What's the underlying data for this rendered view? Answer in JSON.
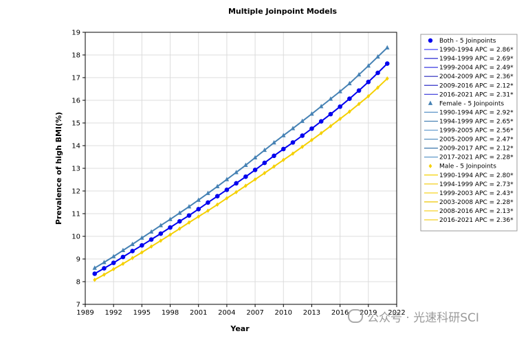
{
  "chart_data": {
    "type": "line",
    "title": "Multiple Joinpoint Models",
    "xlabel": "Year",
    "ylabel": "Prevalence of high BMI(%)",
    "xlim": [
      1989,
      2022
    ],
    "ylim": [
      7,
      19
    ],
    "xticks": [
      1989,
      1992,
      1995,
      1998,
      2001,
      2004,
      2007,
      2010,
      2013,
      2016,
      2019,
      2022
    ],
    "yticks": [
      7,
      8,
      9,
      10,
      11,
      12,
      13,
      14,
      15,
      16,
      17,
      18,
      19
    ],
    "grid": true,
    "legend_position": "right",
    "series": [
      {
        "name": "Both - 5 Joinpoints",
        "color": "#0000ee",
        "marker": "circle",
        "x": [
          1990,
          1991,
          1992,
          1993,
          1994,
          1995,
          1996,
          1997,
          1998,
          1999,
          2000,
          2001,
          2002,
          2003,
          2004,
          2005,
          2006,
          2007,
          2008,
          2009,
          2010,
          2011,
          2012,
          2013,
          2014,
          2015,
          2016,
          2017,
          2018,
          2019,
          2020,
          2021
        ],
        "values": [
          8.35,
          8.59,
          8.83,
          9.09,
          9.35,
          9.6,
          9.86,
          10.12,
          10.39,
          10.66,
          10.92,
          11.2,
          11.49,
          11.77,
          12.05,
          12.34,
          12.63,
          12.93,
          13.24,
          13.55,
          13.85,
          14.14,
          14.44,
          14.75,
          15.07,
          15.39,
          15.72,
          16.07,
          16.43,
          16.81,
          17.21,
          17.62
        ],
        "segments": [
          "1990-1994 APC  = 2.86*",
          "1994-1999 APC  = 2.69*",
          "1999-2004 APC  = 2.49*",
          "2004-2009 APC  = 2.36*",
          "2009-2016 APC  = 2.12*",
          "2016-2021 APC  = 2.31*"
        ]
      },
      {
        "name": "Female - 5 Joinpoints",
        "color": "#4682b4",
        "marker": "triangle",
        "x": [
          1990,
          1991,
          1992,
          1993,
          1994,
          1995,
          1996,
          1997,
          1998,
          1999,
          2000,
          2001,
          2002,
          2003,
          2004,
          2005,
          2006,
          2007,
          2008,
          2009,
          2010,
          2011,
          2012,
          2013,
          2014,
          2015,
          2016,
          2017,
          2018,
          2019,
          2020,
          2021
        ],
        "values": [
          8.6,
          8.85,
          9.11,
          9.38,
          9.65,
          9.93,
          10.2,
          10.48,
          10.75,
          11.03,
          11.31,
          11.6,
          11.9,
          12.2,
          12.51,
          12.82,
          13.14,
          13.47,
          13.8,
          14.13,
          14.45,
          14.76,
          15.08,
          15.4,
          15.73,
          16.06,
          16.39,
          16.74,
          17.13,
          17.52,
          17.92,
          18.32
        ],
        "segments": [
          "1990-1994 APC  = 2.92*",
          "1994-1999 APC  = 2.65*",
          "1999-2005 APC  = 2.56*",
          "2005-2009 APC  = 2.47*",
          "2009-2017 APC  = 2.12*",
          "2017-2021 APC  = 2.28*"
        ]
      },
      {
        "name": "Male - 5 Joinpoints",
        "color": "#f5d000",
        "marker": "diamond",
        "x": [
          1990,
          1991,
          1992,
          1993,
          1994,
          1995,
          1996,
          1997,
          1998,
          1999,
          2000,
          2001,
          2002,
          2003,
          2004,
          2005,
          2006,
          2007,
          2008,
          2009,
          2010,
          2011,
          2012,
          2013,
          2014,
          2015,
          2016,
          2017,
          2018,
          2019,
          2020,
          2021
        ],
        "values": [
          8.08,
          8.31,
          8.55,
          8.79,
          9.04,
          9.29,
          9.55,
          9.81,
          10.07,
          10.34,
          10.61,
          10.87,
          11.13,
          11.4,
          11.68,
          11.95,
          12.23,
          12.51,
          12.79,
          13.08,
          13.37,
          13.65,
          13.95,
          14.25,
          14.55,
          14.86,
          15.18,
          15.5,
          15.84,
          16.18,
          16.56,
          16.96
        ],
        "segments": [
          "1990-1994 APC  = 2.80*",
          "1994-1999 APC  = 2.73*",
          "1999-2003 APC  = 2.43*",
          "2003-2008 APC  = 2.28*",
          "2008-2016 APC  = 2.13*",
          "2016-2021 APC  = 2.36*"
        ]
      }
    ]
  },
  "watermark": "公众号 · 光速科研SCI"
}
